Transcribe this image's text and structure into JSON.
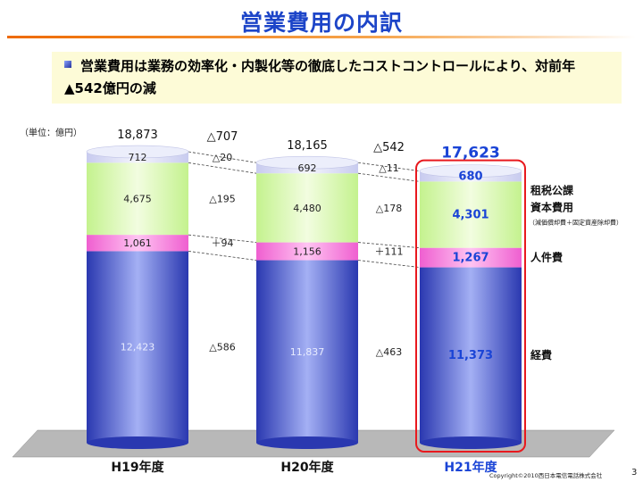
{
  "title": "営業費用の内訳",
  "summary": {
    "line1": "営業費用は業務の効率化・内製化等の徹底したコストコントロールにより、対前年",
    "line2": "▲542億円の減"
  },
  "unit_label": "（単位：億円）",
  "copyright": "Copyright©2010西日本電信電話株式会社",
  "page_number": "3",
  "colors": {
    "title": "#1d45c8",
    "accent_red": "#e8191e",
    "highlight_blue": "#1a44d6",
    "cat_label": "#111111"
  },
  "chart_data": {
    "type": "bar",
    "stacked": true,
    "categories": [
      "H19年度",
      "H20年度",
      "H21年度"
    ],
    "series": [
      {
        "name": "経費",
        "values": [
          12423,
          11837,
          11373
        ],
        "value_labels": [
          "12,423",
          "11,837",
          "11,373"
        ],
        "color": "#3344b8"
      },
      {
        "name": "人件費",
        "values": [
          1061,
          1156,
          1267
        ],
        "value_labels": [
          "1,061",
          "1,156",
          "1,267"
        ],
        "color": "#f07ad8"
      },
      {
        "name": "資本費用",
        "sublabel": "（減価償却費＋固定資産除却費）",
        "values": [
          4675,
          4480,
          4301
        ],
        "value_labels": [
          "4,675",
          "4,480",
          "4,301"
        ],
        "color": "#d6f7b0"
      },
      {
        "name": "租税公課",
        "values": [
          712,
          692,
          680
        ],
        "value_labels": [
          "712",
          "692",
          "680"
        ],
        "color": "#dadcf4"
      }
    ],
    "totals": [
      18873,
      18165,
      17623
    ],
    "total_labels": [
      "18,873",
      "18,165",
      "17,623"
    ],
    "change_labels": [
      {
        "total": "△707",
        "租税公課": "△20",
        "資本費用": "△195",
        "人件費": "＋94",
        "経費": "△586"
      },
      {
        "total": "△542",
        "租税公課": "△11",
        "資本費用": "△178",
        "人件費": "＋111",
        "経費": "△463"
      }
    ],
    "highlight_category": "H21年度"
  }
}
